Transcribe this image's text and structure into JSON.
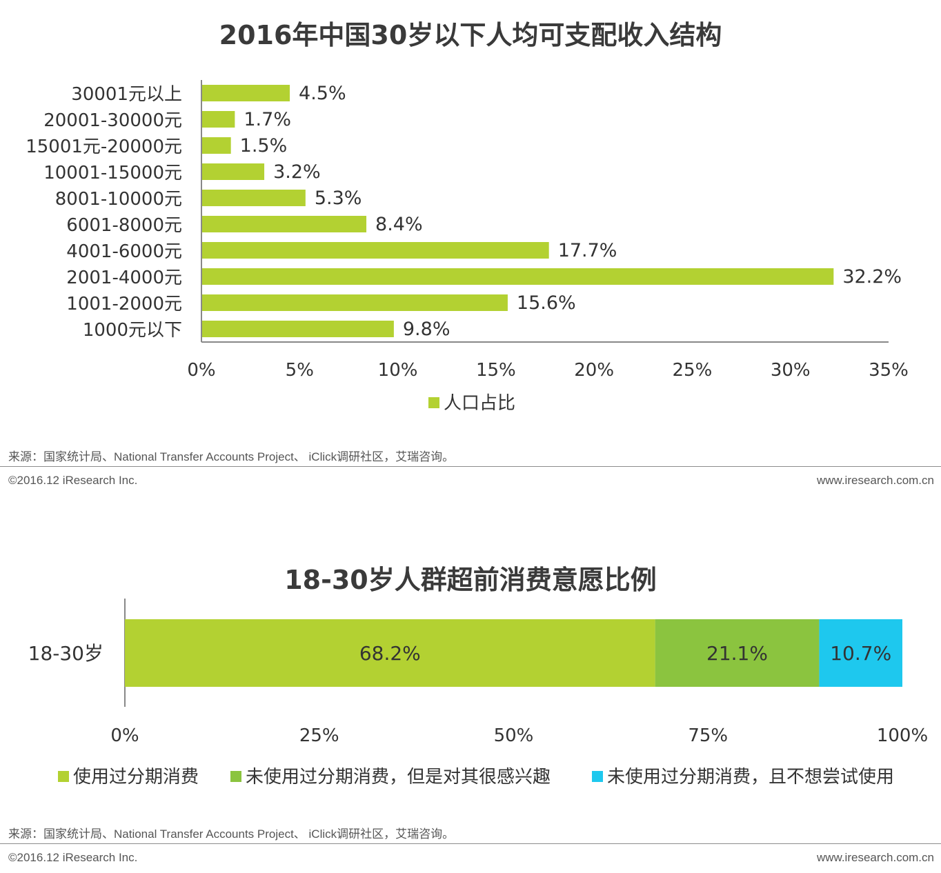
{
  "chart_data": [
    {
      "type": "bar",
      "orientation": "horizontal",
      "title": "2016年中国30岁以下人均可支配收入结构",
      "categories": [
        "30001元以上",
        "20001-30000元",
        "15001元-20000元",
        "10001-15000元",
        "8001-10000元",
        "6001-8000元",
        "4001-6000元",
        "2001-4000元",
        "1001-2000元",
        "1000元以下"
      ],
      "values": [
        4.5,
        1.7,
        1.5,
        3.2,
        5.3,
        8.4,
        17.7,
        32.2,
        15.6,
        9.8
      ],
      "value_labels": [
        "4.5%",
        "1.7%",
        "1.5%",
        "3.2%",
        "5.3%",
        "8.4%",
        "17.7%",
        "32.2%",
        "15.6%",
        "9.8%"
      ],
      "xlim": [
        0,
        35
      ],
      "xticks": [
        0,
        5,
        10,
        15,
        20,
        25,
        30,
        35
      ],
      "xtick_labels": [
        "0%",
        "5%",
        "10%",
        "15%",
        "20%",
        "25%",
        "30%",
        "35%"
      ],
      "legend": [
        {
          "name": "人口占比",
          "color": "#b3d132"
        }
      ],
      "legend_position": "bottom",
      "grid": false
    },
    {
      "type": "bar",
      "orientation": "horizontal",
      "stacked": true,
      "title": "18-30岁人群超前消费意愿比例",
      "categories": [
        "18-30岁"
      ],
      "series": [
        {
          "name": "使用过分期消费",
          "values": [
            68.2
          ],
          "label": "68.2%",
          "color": "#b3d132"
        },
        {
          "name": "未使用过分期消费，但是对其很感兴趣",
          "values": [
            21.1
          ],
          "label": "21.1%",
          "color": "#8bc43f"
        },
        {
          "name": "未使用过分期消费，且不想尝试使用",
          "values": [
            10.7
          ],
          "label": "10.7%",
          "color": "#1ec8ee"
        }
      ],
      "xlim": [
        0,
        100
      ],
      "xticks": [
        0,
        25,
        50,
        75,
        100
      ],
      "xtick_labels": [
        "0%",
        "25%",
        "50%",
        "75%",
        "100%"
      ],
      "legend_position": "bottom",
      "grid": false
    }
  ],
  "footer1": {
    "source": "来源：国家统计局、National Transfer Accounts Project、 iClick调研社区，艾瑞咨询。",
    "copyright": "©2016.12 iResearch Inc.",
    "website": "www.iresearch.com.cn"
  },
  "footer2": {
    "source": "来源：国家统计局、National Transfer Accounts Project、 iClick调研社区，艾瑞咨询。",
    "copyright": "©2016.12 iResearch Inc.",
    "website": "www.iresearch.com.cn"
  }
}
